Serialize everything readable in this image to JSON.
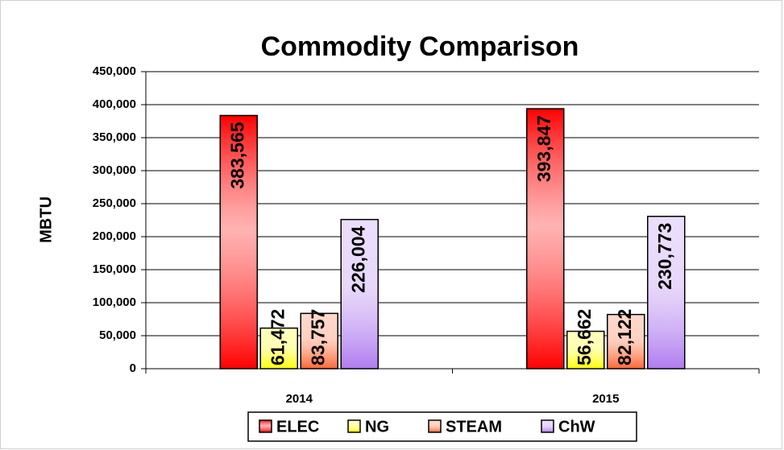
{
  "chart_data": {
    "type": "bar",
    "title": "Commodity Comparison",
    "y_label": "MBTU",
    "categories": [
      "2014",
      "2015"
    ],
    "series": [
      {
        "name": "ELEC",
        "color": "#ff0000",
        "values": [
          383565,
          393847
        ],
        "value_labels": [
          "383,565",
          "393,847"
        ]
      },
      {
        "name": "NG",
        "color": "#ffff00",
        "values": [
          61472,
          56662
        ],
        "value_labels": [
          "61,472",
          "56,662"
        ]
      },
      {
        "name": "STEAM",
        "color": "#ff6633",
        "values": [
          83757,
          82122
        ],
        "value_labels": [
          "83,757",
          "82,122"
        ]
      },
      {
        "name": "ChW",
        "color": "#b07cf0",
        "values": [
          226004,
          230773
        ],
        "value_labels": [
          "226,004",
          "230,773"
        ]
      }
    ],
    "ylim": [
      0,
      450000
    ],
    "yticks": [
      0,
      {
        "value": 50000,
        "label": "50,000"
      },
      {
        "value": 100000,
        "label": "100,000"
      },
      {
        "value": 150000,
        "label": "150,000"
      },
      {
        "value": 200000,
        "label": "200,000"
      },
      {
        "value": 250000,
        "label": "250,000"
      },
      {
        "value": 300000,
        "label": "300,000"
      },
      {
        "value": 350000,
        "label": "350,000"
      },
      {
        "value": 400000,
        "label": "400,000"
      },
      {
        "value": 450000,
        "label": "450,000"
      }
    ],
    "grid": true,
    "legend": "bottom"
  }
}
